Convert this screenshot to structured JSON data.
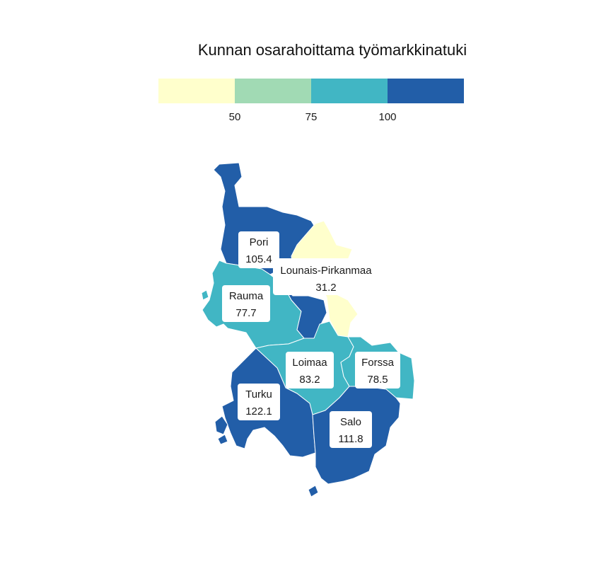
{
  "title": "Kunnan osarahoittama työmarkkinatuki",
  "legend": {
    "colors": [
      "#ffffcc",
      "#a1dab4",
      "#41b6c4",
      "#225ea8"
    ],
    "breaks": [
      "50",
      "75",
      "100"
    ]
  },
  "regions": [
    {
      "name": "Pori",
      "value": "105.4",
      "color": "#225ea8"
    },
    {
      "name": "Lounais-Pirkanmaa",
      "value": "31.2",
      "color": "#ffffcc"
    },
    {
      "name": "Rauma",
      "value": "77.7",
      "color": "#41b6c4"
    },
    {
      "name": "Loimaa",
      "value": "83.2",
      "color": "#41b6c4"
    },
    {
      "name": "Forssa",
      "value": "78.5",
      "color": "#41b6c4"
    },
    {
      "name": "Turku",
      "value": "122.1",
      "color": "#225ea8"
    },
    {
      "name": "Salo",
      "value": "111.8",
      "color": "#225ea8"
    }
  ]
}
